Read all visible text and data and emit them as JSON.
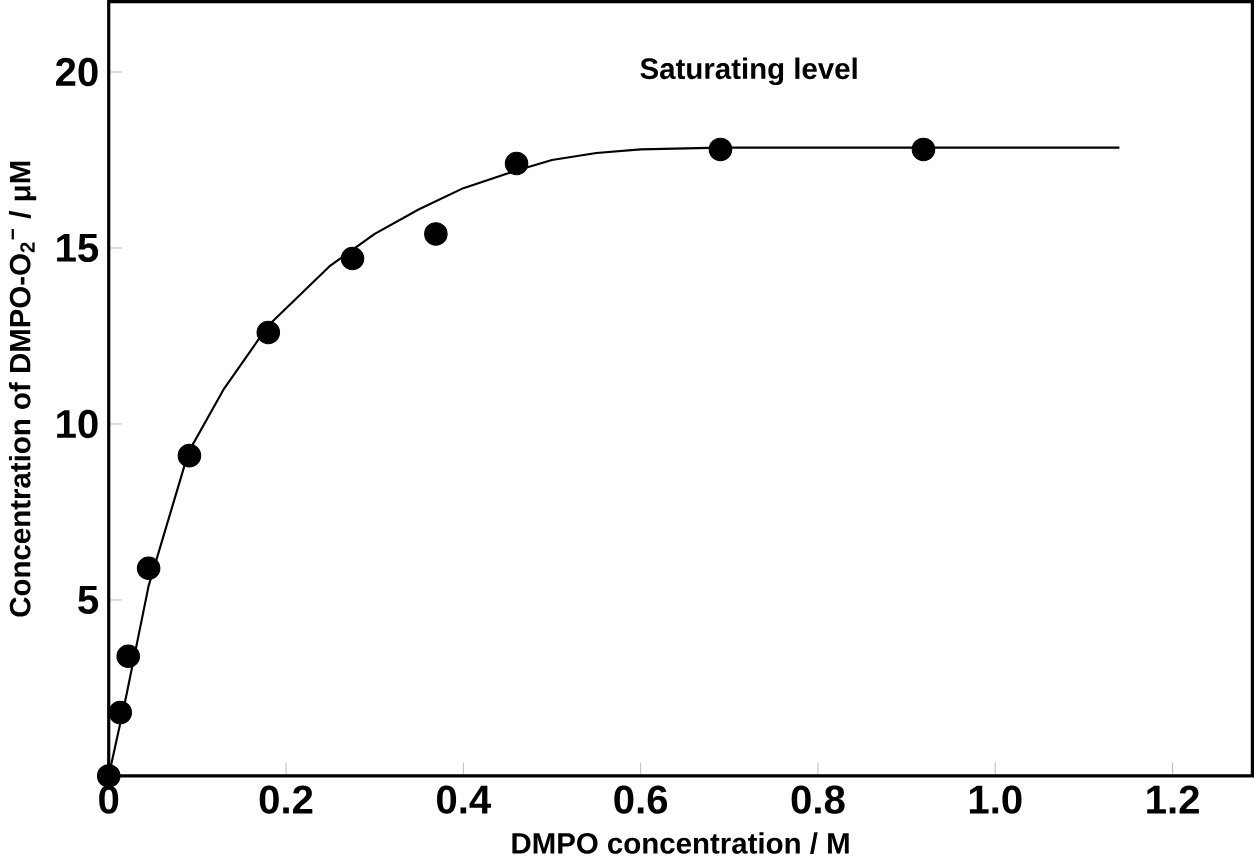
{
  "chart_data": {
    "type": "scatter",
    "xlabel": "DMPO concentration / M",
    "ylabel": "Concentration of DMPO-O$_{2}$$^{−}$ / μM",
    "annotations": [
      "Saturating level"
    ],
    "xlim": [
      0,
      1.29
    ],
    "ylim": [
      0,
      22
    ],
    "xticks": [
      0,
      0.2,
      0.4,
      0.6,
      0.8,
      {
        "value": 1,
        "label": "1.0"
      },
      1.2
    ],
    "yticks": [
      5,
      10,
      15,
      20
    ],
    "grid": false,
    "series": [
      {
        "marker": "circle",
        "color": "#000000",
        "x": [
          0,
          0.013,
          0.022,
          0.045,
          0.091,
          0.18,
          0.275,
          0.369,
          0.46,
          0.69,
          0.919
        ],
        "values": [
          0,
          1.8,
          3.4,
          5.9,
          9.1,
          12.6,
          14.7,
          15.4,
          17.4,
          17.8,
          17.8
        ]
      },
      {
        "type": "line",
        "marker": "none",
        "line_style": "solid",
        "color": "#000000",
        "x": [
          0,
          0.02,
          0.045,
          0.09,
          0.13,
          0.18,
          0.25,
          0.3,
          0.35,
          0.4,
          0.46,
          0.5,
          0.55,
          0.6,
          0.69,
          0.8,
          0.92,
          1.14
        ],
        "values": [
          0,
          2.3,
          5.4,
          9.2,
          11.0,
          12.8,
          14.5,
          15.4,
          16.1,
          16.7,
          17.2,
          17.5,
          17.7,
          17.8,
          17.85,
          17.85,
          17.85,
          17.85
        ]
      }
    ]
  }
}
